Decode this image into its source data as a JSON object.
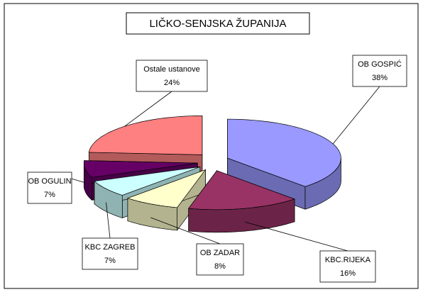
{
  "chart_data": {
    "type": "pie3d",
    "title": "LIČKO-SENJSKA ŽUPANIJA",
    "categories": [
      "OB GOSPIĆ",
      "KBC.RIJEKA",
      "OB ZADAR",
      "KBC ZAGREB",
      "OB OGULIN",
      "Ostale ustanove"
    ],
    "values": [
      38,
      16,
      8,
      7,
      7,
      24
    ],
    "value_labels": [
      "38%",
      "16%",
      "8%",
      "7%",
      "7%",
      "24%"
    ],
    "colors": [
      "#9999ff",
      "#993366",
      "#ffffcc",
      "#ccffff",
      "#660066",
      "#ff8080"
    ]
  }
}
